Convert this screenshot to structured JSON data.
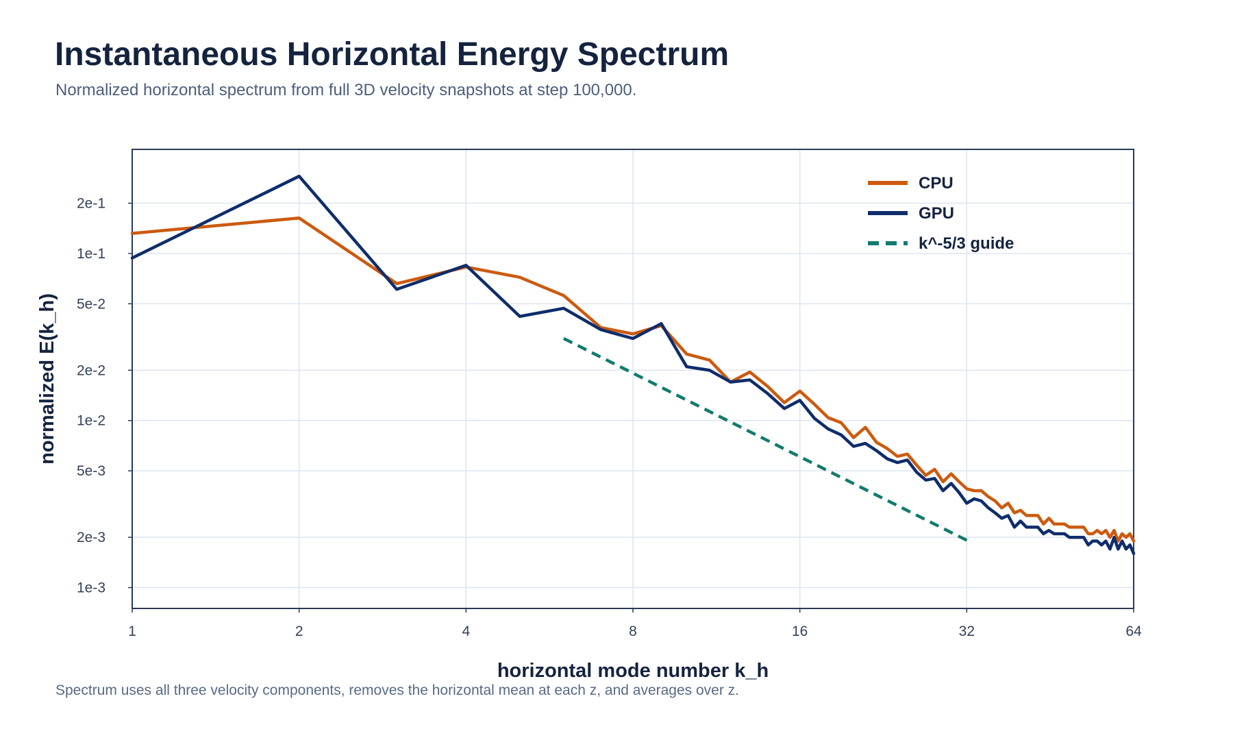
{
  "header": {
    "title": "Instantaneous Horizontal Energy Spectrum",
    "subtitle": "Normalized horizontal spectrum from full 3D velocity snapshots at step 100,000."
  },
  "footer": {
    "note": "Spectrum uses all three velocity components, removes the horizontal mean at each z, and averages over z."
  },
  "chart_data": {
    "type": "line",
    "title": "Instantaneous Horizontal Energy Spectrum",
    "xlabel": "horizontal mode number k_h",
    "ylabel": "normalized E(k_h)",
    "xscale": "log2",
    "yscale": "log10",
    "xlim": [
      1,
      64
    ],
    "ylim": [
      0.00075,
      0.42
    ],
    "x_ticks": [
      1,
      2,
      4,
      8,
      16,
      32,
      64
    ],
    "x_tick_labels": [
      "1",
      "2",
      "4",
      "8",
      "16",
      "32",
      "64"
    ],
    "y_ticks": [
      0.001,
      0.002,
      0.005,
      0.01,
      0.02,
      0.05,
      0.1,
      0.2
    ],
    "y_tick_labels": [
      "1e-3",
      "2e-3",
      "5e-3",
      "1e-2",
      "2e-2",
      "5e-2",
      "1e-1",
      "2e-1"
    ],
    "grid": true,
    "legend_position": "top-right",
    "series": [
      {
        "name": "CPU",
        "color": "#cc5a0f",
        "dash": "solid",
        "x": [
          1,
          2,
          3,
          4,
          5,
          6,
          7,
          8,
          9,
          10,
          11,
          12,
          13,
          14,
          15,
          16,
          17,
          18,
          19,
          20,
          21,
          22,
          23,
          24,
          25,
          26,
          27,
          28,
          29,
          30,
          31,
          32,
          33,
          34,
          35,
          36,
          37,
          38,
          39,
          40,
          41,
          42,
          43,
          44,
          45,
          46,
          47,
          48,
          49,
          50,
          51,
          52,
          53,
          54,
          55,
          56,
          57,
          58,
          59,
          60,
          61,
          62,
          63,
          64
        ],
        "y": [
          0.132,
          0.163,
          0.066,
          0.083,
          0.072,
          0.056,
          0.036,
          0.033,
          0.037,
          0.025,
          0.023,
          0.017,
          0.0195,
          0.016,
          0.0128,
          0.015,
          0.0125,
          0.0104,
          0.0097,
          0.0079,
          0.0091,
          0.0074,
          0.0068,
          0.0061,
          0.0063,
          0.0054,
          0.0047,
          0.0051,
          0.0043,
          0.0048,
          0.0043,
          0.0039,
          0.0038,
          0.0038,
          0.0035,
          0.0033,
          0.003,
          0.0032,
          0.0028,
          0.0029,
          0.0027,
          0.0027,
          0.0027,
          0.0024,
          0.0026,
          0.0024,
          0.0024,
          0.0024,
          0.0023,
          0.0023,
          0.0023,
          0.0023,
          0.0021,
          0.0021,
          0.0022,
          0.0021,
          0.0022,
          0.002,
          0.0022,
          0.0019,
          0.0021,
          0.002,
          0.0021,
          0.0019
        ]
      },
      {
        "name": "GPU",
        "color": "#0f2d6b",
        "dash": "solid",
        "x": [
          1,
          2,
          3,
          4,
          5,
          6,
          7,
          8,
          9,
          10,
          11,
          12,
          13,
          14,
          15,
          16,
          17,
          18,
          19,
          20,
          21,
          22,
          23,
          24,
          25,
          26,
          27,
          28,
          29,
          30,
          31,
          32,
          33,
          34,
          35,
          36,
          37,
          38,
          39,
          40,
          41,
          42,
          43,
          44,
          45,
          46,
          47,
          48,
          49,
          50,
          51,
          52,
          53,
          54,
          55,
          56,
          57,
          58,
          59,
          60,
          61,
          62,
          63,
          64
        ],
        "y": [
          0.094,
          0.29,
          0.061,
          0.085,
          0.042,
          0.047,
          0.035,
          0.031,
          0.038,
          0.021,
          0.02,
          0.017,
          0.0175,
          0.0145,
          0.0118,
          0.0132,
          0.0103,
          0.0089,
          0.0082,
          0.007,
          0.0073,
          0.0066,
          0.0059,
          0.0056,
          0.0058,
          0.0049,
          0.0044,
          0.0045,
          0.0038,
          0.0042,
          0.0037,
          0.0032,
          0.0034,
          0.0033,
          0.003,
          0.0028,
          0.0026,
          0.0027,
          0.0023,
          0.0025,
          0.0023,
          0.0023,
          0.0023,
          0.0021,
          0.0022,
          0.0021,
          0.0021,
          0.0021,
          0.002,
          0.002,
          0.002,
          0.002,
          0.0018,
          0.0019,
          0.0019,
          0.0018,
          0.0019,
          0.0017,
          0.002,
          0.0017,
          0.0019,
          0.0017,
          0.0018,
          0.0016
        ]
      },
      {
        "name": "k^-5/3 guide",
        "color": "#127a6e",
        "dash": "dashed",
        "x": [
          6,
          32
        ],
        "y": [
          0.031,
          0.00192
        ]
      }
    ]
  }
}
